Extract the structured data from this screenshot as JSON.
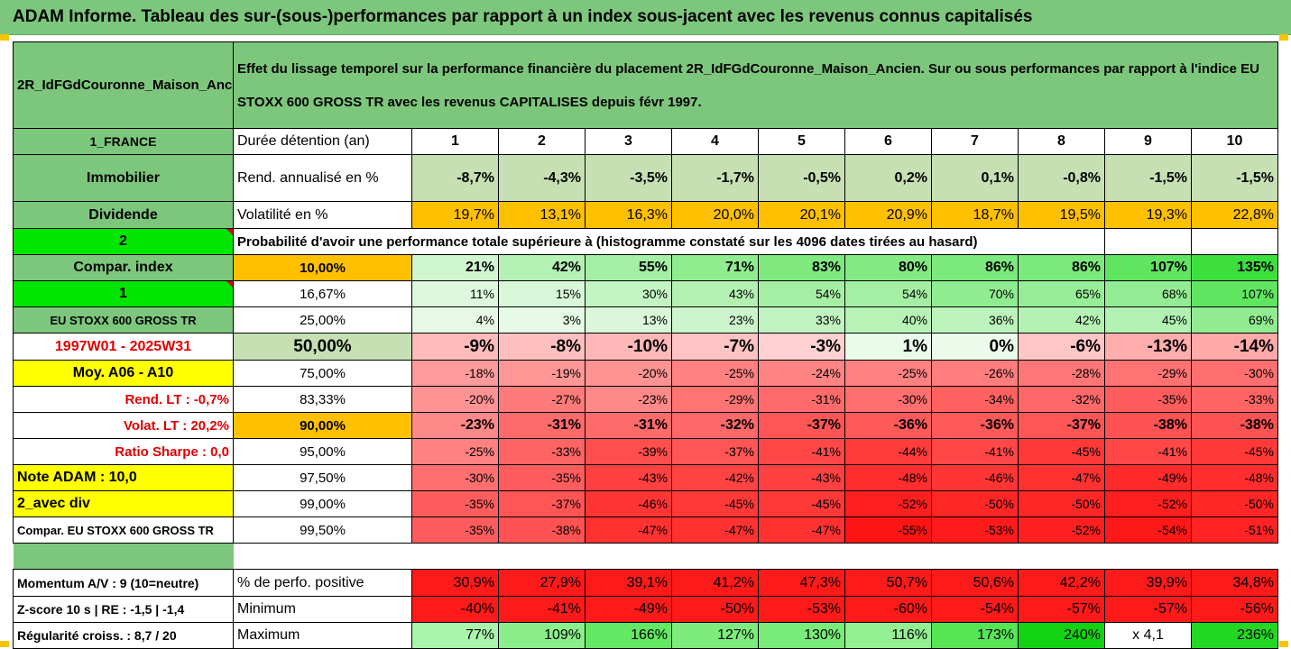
{
  "title": "ADAM Informe. Tableau des sur-(sous-)performances par rapport à un index sous-jacent avec les revenus connus capitalisés",
  "colors": {
    "header_green": "#7dc77d",
    "light_green": "#c6e0b4",
    "orange": "#ffc000",
    "yellow": "#ffff00",
    "bright_green": "#00e600",
    "red_text": "#e00000"
  },
  "header": {
    "fund_name": "2R_IdFGdCouronne_Maison_Ancien",
    "description": "Effet du lissage temporel sur la performance financière du placement 2R_IdFGdCouronne_Maison_Ancien. Sur ou sous performances par rapport à l'indice EU STOXX 600 GROSS TR avec les revenus CAPITALISES depuis févr 1997."
  },
  "side": {
    "country": "1_FRANCE",
    "asset": "Immobilier",
    "dividend": "Dividende",
    "num2": "2",
    "compar_index": "Compar. index",
    "num1": "1",
    "index_name": "EU STOXX 600 GROSS TR",
    "period": "1997W01 - 2025W31",
    "moy": "Moy. A06 - A10",
    "rend_lt": "Rend. LT :   -0,7%",
    "volat_lt": "Volat. LT :   20,2%",
    "sharpe": "Ratio Sharpe :   0,0",
    "note": "Note ADAM : 10,0",
    "avec_div": "2_avec div",
    "compar_full": "Compar. EU STOXX 600 GROSS TR",
    "momentum": "Momentum A/V : 9 (10=neutre)",
    "zscore": "Z-score 10 s  |  RE : -1,5  |  -1,4",
    "regularite": "Régularité croiss. : 8,7 / 20"
  },
  "labels": {
    "duree": "Durée détention (an)",
    "rend": "Rend. annualisé en %",
    "vol": "Volatilité en %",
    "proba": "Probabilité d'avoir une performance totale supérieure à (histogramme constaté sur les 4096 dates tirées au hasard)",
    "perf_pos": "% de perfo. positive",
    "minimum": "Minimum",
    "maximum": "Maximum"
  },
  "years": [
    "1",
    "2",
    "3",
    "4",
    "5",
    "6",
    "7",
    "8",
    "9",
    "10"
  ],
  "rend": [
    "-8,7%",
    "-4,3%",
    "-3,5%",
    "-1,7%",
    "-0,5%",
    "0,2%",
    "0,1%",
    "-0,8%",
    "-1,5%",
    "-1,5%"
  ],
  "vol": [
    "19,7%",
    "13,1%",
    "16,3%",
    "20,0%",
    "20,1%",
    "20,9%",
    "18,7%",
    "19,5%",
    "19,3%",
    "22,8%"
  ],
  "percentiles": [
    {
      "p": "10,00%",
      "vals": [
        "21%",
        "42%",
        "55%",
        "71%",
        "83%",
        "80%",
        "86%",
        "86%",
        "107%",
        "135%"
      ]
    },
    {
      "p": "16,67%",
      "vals": [
        "11%",
        "15%",
        "30%",
        "43%",
        "54%",
        "54%",
        "70%",
        "65%",
        "68%",
        "107%"
      ]
    },
    {
      "p": "25,00%",
      "vals": [
        "4%",
        "3%",
        "13%",
        "23%",
        "33%",
        "40%",
        "36%",
        "42%",
        "45%",
        "69%"
      ]
    },
    {
      "p": "50,00%",
      "vals": [
        "-9%",
        "-8%",
        "-10%",
        "-7%",
        "-3%",
        "1%",
        "0%",
        "-6%",
        "-13%",
        "-14%"
      ]
    },
    {
      "p": "75,00%",
      "vals": [
        "-18%",
        "-19%",
        "-20%",
        "-25%",
        "-24%",
        "-25%",
        "-26%",
        "-28%",
        "-29%",
        "-30%"
      ]
    },
    {
      "p": "83,33%",
      "vals": [
        "-20%",
        "-27%",
        "-23%",
        "-29%",
        "-31%",
        "-30%",
        "-34%",
        "-32%",
        "-35%",
        "-33%"
      ]
    },
    {
      "p": "90,00%",
      "vals": [
        "-23%",
        "-31%",
        "-31%",
        "-32%",
        "-37%",
        "-36%",
        "-36%",
        "-37%",
        "-38%",
        "-38%"
      ]
    },
    {
      "p": "95,00%",
      "vals": [
        "-25%",
        "-33%",
        "-39%",
        "-37%",
        "-41%",
        "-44%",
        "-41%",
        "-45%",
        "-41%",
        "-45%"
      ]
    },
    {
      "p": "97,50%",
      "vals": [
        "-30%",
        "-35%",
        "-43%",
        "-42%",
        "-43%",
        "-48%",
        "-46%",
        "-47%",
        "-49%",
        "-48%"
      ]
    },
    {
      "p": "99,00%",
      "vals": [
        "-35%",
        "-37%",
        "-46%",
        "-45%",
        "-45%",
        "-52%",
        "-50%",
        "-50%",
        "-52%",
        "-50%"
      ]
    },
    {
      "p": "99,50%",
      "vals": [
        "-35%",
        "-38%",
        "-47%",
        "-47%",
        "-47%",
        "-55%",
        "-53%",
        "-52%",
        "-54%",
        "-51%"
      ]
    }
  ],
  "perf_pos": [
    "30,9%",
    "27,9%",
    "39,1%",
    "41,2%",
    "47,3%",
    "50,7%",
    "50,6%",
    "42,2%",
    "39,9%",
    "34,8%"
  ],
  "minimum": [
    "-40%",
    "-41%",
    "-49%",
    "-50%",
    "-53%",
    "-60%",
    "-54%",
    "-57%",
    "-57%",
    "-56%"
  ],
  "maximum": [
    "77%",
    "109%",
    "166%",
    "127%",
    "130%",
    "116%",
    "173%",
    "240%",
    "x 4,1",
    "236%"
  ]
}
